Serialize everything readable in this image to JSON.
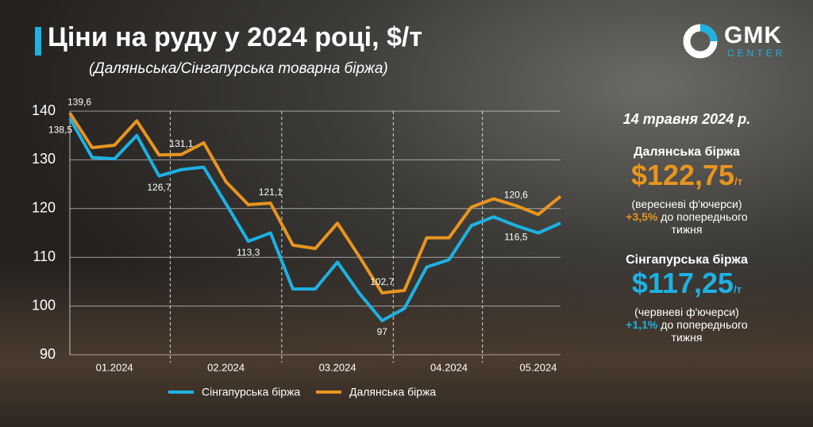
{
  "header": {
    "title": "Ціни на руду у 2024 році, $/т",
    "subtitle": "(Даляньська/Сінгапурська товарна біржа)"
  },
  "logo": {
    "name": "GMK",
    "tagline": "CENTER"
  },
  "chart_data": {
    "type": "line",
    "categories": [
      null,
      null,
      "01.2024",
      null,
      null,
      null,
      null,
      "02.2024",
      null,
      null,
      null,
      null,
      "03.2024",
      null,
      null,
      null,
      null,
      "04.2024",
      null,
      null,
      null,
      "05.2024",
      null
    ],
    "series": [
      {
        "name": "Сінгапурська біржа",
        "color": "#1cb2e3",
        "values": [
          138.5,
          130.5,
          130.2,
          135,
          126.7,
          128,
          128.5,
          121,
          113.3,
          115,
          103.5,
          103.5,
          109,
          102.5,
          97,
          99.5,
          108,
          109.5,
          116.5,
          118.3,
          116.5,
          115,
          117
        ],
        "value_labels": [
          "138,5",
          null,
          null,
          null,
          "126,7",
          null,
          null,
          null,
          "113,3",
          null,
          null,
          null,
          null,
          null,
          "97",
          null,
          null,
          null,
          null,
          null,
          "116,5",
          null,
          null
        ]
      },
      {
        "name": "Далянська біржа",
        "color": "#e8951e",
        "values": [
          139.6,
          132.5,
          133,
          138,
          131,
          131.1,
          133.5,
          125.5,
          120.8,
          121.1,
          112.5,
          111.8,
          117,
          110,
          102.7,
          103.2,
          114,
          114,
          120.3,
          122,
          120.6,
          118.8,
          122.5
        ],
        "value_labels": [
          "139,6",
          null,
          null,
          null,
          null,
          "131,1",
          null,
          null,
          null,
          "121,1",
          null,
          null,
          null,
          null,
          "102,7",
          null,
          null,
          null,
          null,
          null,
          "120,6",
          null,
          null
        ]
      }
    ],
    "ylim": [
      90,
      140
    ],
    "yticks": [
      90,
      100,
      110,
      120,
      130,
      140
    ],
    "grid": true
  },
  "sidebar": {
    "date": "14 травня 2024 р.",
    "exchanges": [
      {
        "name": "Далянська біржа",
        "price": "$122,75",
        "unit": "/т",
        "contract": "(вересневі ф'ючерси)",
        "change": "+3,5%",
        "change_note": "до попереднього тижня"
      },
      {
        "name": "Сінгапурська біржа",
        "price": "$117,25",
        "unit": "/т",
        "contract": "(червневі ф'ючерси)",
        "change": "+1,1%",
        "change_note": "до попереднього тижня"
      }
    ]
  }
}
